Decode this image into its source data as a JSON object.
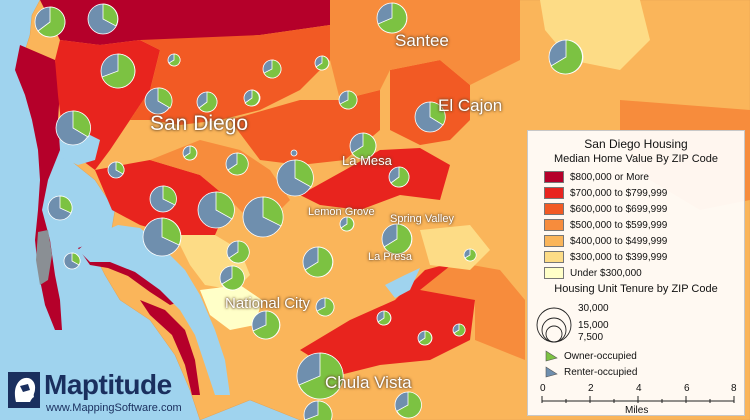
{
  "map": {
    "cities": {
      "san_diego": "San Diego",
      "santee": "Santee",
      "el_cajon": "El Cajon",
      "la_mesa": "La Mesa",
      "lemon_grove": "Lemon Grove",
      "spring_valley": "Spring Valley",
      "la_presa": "La Presa",
      "national_city": "National City",
      "chula_vista": "Chula Vista"
    },
    "colors": {
      "water": "#9fd3ee",
      "owner_occupied": "#7cc242",
      "renter_occupied": "#6f8fae"
    }
  },
  "legend": {
    "title": "San Diego Housing",
    "value_heading": "Median Home Value By ZIP Code",
    "value_classes": [
      {
        "label": "$800,000 or More",
        "color": "#b5002a"
      },
      {
        "label": "$700,000 to $799,999",
        "color": "#e8241e"
      },
      {
        "label": "$600,000 to $699,999",
        "color": "#f25a24"
      },
      {
        "label": "$500,000 to $599,999",
        "color": "#f78c3c"
      },
      {
        "label": "$400,000 to $499,999",
        "color": "#fab55a"
      },
      {
        "label": "$300,000 to $399,999",
        "color": "#fddc86"
      },
      {
        "label": "Under $300,000",
        "color": "#ffffc8"
      }
    ],
    "tenure_heading": "Housing Unit Tenure by ZIP Code",
    "sizes": [
      "30,000",
      "15,000",
      "7,500"
    ],
    "tenure_labels": {
      "owner": "Owner-occupied",
      "renter": "Renter-occupied"
    },
    "scale": {
      "ticks": [
        "0",
        "2",
        "4",
        "6",
        "8"
      ],
      "unit": "Miles"
    }
  },
  "branding": {
    "name": "Maptitude",
    "url": "www.MappingSoftware.com"
  }
}
